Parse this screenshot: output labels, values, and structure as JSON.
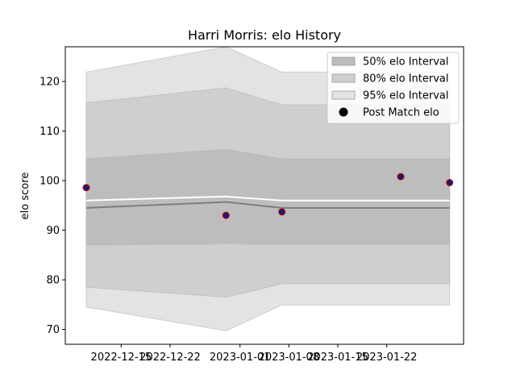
{
  "chart_data": {
    "type": "line",
    "title": "Harri Morris: elo History",
    "xlabel": "",
    "ylabel": "elo score",
    "x_dates": [
      "2022-12-10",
      "2022-12-30",
      "2023-01-07",
      "2023-01-24",
      "2023-01-31"
    ],
    "xlim": [
      "2022-12-07",
      "2023-02-02"
    ],
    "x_ticks": [
      "2022-12-15",
      "2022-12-22",
      "2023-01-01",
      "2023-01-08",
      "2023-01-15",
      "2023-01-22"
    ],
    "ylim": [
      67,
      127
    ],
    "y_ticks": [
      70,
      80,
      90,
      100,
      110,
      120
    ],
    "mean_line": [
      96.0,
      96.8,
      96.0,
      96.0,
      96.0
    ],
    "median_line": [
      94.5,
      95.7,
      94.5,
      94.5,
      94.5
    ],
    "bands": [
      {
        "name": "95% elo Interval",
        "color": "#e3e3e3",
        "lower": [
          74.5,
          69.7,
          74.9,
          74.9,
          74.9
        ],
        "upper": [
          121.9,
          127.0,
          121.9,
          121.9,
          121.9
        ]
      },
      {
        "name": "80% elo Interval",
        "color": "#cfcfcf",
        "lower": [
          78.5,
          76.5,
          79.2,
          79.2,
          79.2
        ],
        "upper": [
          115.7,
          118.7,
          115.3,
          115.3,
          115.3
        ]
      },
      {
        "name": "50% elo Interval",
        "color": "#bdbdbd",
        "lower": [
          87.0,
          87.3,
          87.2,
          87.2,
          87.2
        ],
        "upper": [
          104.4,
          106.3,
          104.4,
          104.4,
          104.4
        ]
      }
    ],
    "points": {
      "name": "Post Match elo",
      "x": [
        "2022-12-10",
        "2022-12-30",
        "2023-01-07",
        "2023-01-24",
        "2023-01-31"
      ],
      "y": [
        98.6,
        93.0,
        93.7,
        100.8,
        99.6
      ]
    },
    "legend": {
      "placement": "top-right",
      "entries": [
        "50% elo Interval",
        "80% elo Interval",
        "95% elo Interval",
        "Post Match elo"
      ]
    },
    "grid": false
  }
}
